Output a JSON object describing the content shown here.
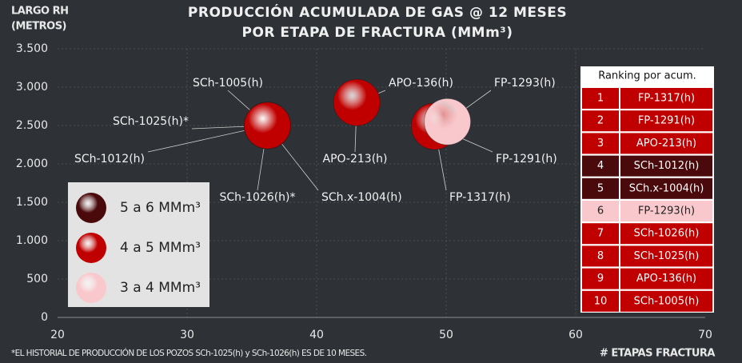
{
  "chart_data": {
    "type": "bubble",
    "title": [
      "PRODUCCIÓN ACUMULADA DE GAS @ 12 MESES",
      "POR ETAPA DE FRACTURA (MMm³)"
    ],
    "y_label": [
      "LARGO RH",
      "(METROS)"
    ],
    "x_label": "# ETAPAS FRACTURA",
    "footnote": "*EL HISTORIAL DE PRODUCCIÓN DE LOS POZOS SCh-1025(h) y SCh-1026(h) ES DE 10 MESES.",
    "xlim": [
      20,
      70
    ],
    "xticks": [
      20,
      30,
      40,
      50,
      60,
      70
    ],
    "ylim": [
      0,
      3500
    ],
    "yticks": [
      0,
      500,
      {
        "value": 1000,
        "label": "1.000"
      },
      {
        "value": 1500,
        "label": "1.500"
      },
      {
        "value": 2000,
        "label": "2.000"
      },
      {
        "value": 2500,
        "label": "2.500"
      },
      {
        "value": 3000,
        "label": "3.000"
      },
      {
        "value": 3500,
        "label": "3.500"
      }
    ],
    "grid": true,
    "points": [
      {
        "name": "SCh-1012(h)",
        "x": 36.2,
        "y": 2500,
        "color": "#4a0a0c"
      },
      {
        "name": "SCh.x-1004(h)",
        "x": 36.2,
        "y": 2500,
        "color": "#4a0a0c"
      },
      {
        "name": "SCh-1005(h)",
        "x": 36.2,
        "y": 2500,
        "color": "#c00000"
      },
      {
        "name": "SCh-1025(h)*",
        "x": 36.2,
        "y": 2500,
        "color": "#c00000"
      },
      {
        "name": "SCh-1026(h)*",
        "x": 36.2,
        "y": 2500,
        "color": "#c00000"
      },
      {
        "name": "APO-136(h)",
        "x": 43.1,
        "y": 2800,
        "color": "#c00000"
      },
      {
        "name": "APO-213(h)",
        "x": 43.1,
        "y": 2800,
        "color": "#c00000"
      },
      {
        "name": "FP-1317(h)",
        "x": 49.1,
        "y": 2490,
        "color": "#c00000"
      },
      {
        "name": "FP-1291(h)",
        "x": 49.1,
        "y": 2490,
        "color": "#c00000"
      },
      {
        "name": "FP-1293(h)",
        "x": 50.1,
        "y": 2550,
        "color": "#f8c8cc"
      }
    ],
    "legend": [
      {
        "label": "5 a 6 MMm³",
        "color": "#4a0a0c"
      },
      {
        "label": "4 a 5 MMm³",
        "color": "#c00000"
      },
      {
        "label": "3 a 4 MMm³",
        "color": "#f8c8cc"
      }
    ],
    "ranking": {
      "header": "Ranking por acum.",
      "rows": [
        {
          "rank": 1,
          "name": "FP-1317(h)",
          "color": "#c00000"
        },
        {
          "rank": 2,
          "name": "FP-1291(h)",
          "color": "#c00000"
        },
        {
          "rank": 3,
          "name": "APO-213(h)",
          "color": "#c00000"
        },
        {
          "rank": 4,
          "name": "SCh-1012(h)",
          "color": "#4a0a0c"
        },
        {
          "rank": 5,
          "name": "SCh.x-1004(h)",
          "color": "#4a0a0c"
        },
        {
          "rank": 6,
          "name": "FP-1293(h)",
          "color": "#f8c8cc"
        },
        {
          "rank": 7,
          "name": "SCh-1026(h)",
          "color": "#c00000"
        },
        {
          "rank": 8,
          "name": "SCh-1025(h)",
          "color": "#c00000"
        },
        {
          "rank": 9,
          "name": "APO-136(h)",
          "color": "#c00000"
        },
        {
          "rank": 10,
          "name": "SCh-1005(h)",
          "color": "#c00000"
        }
      ]
    }
  }
}
